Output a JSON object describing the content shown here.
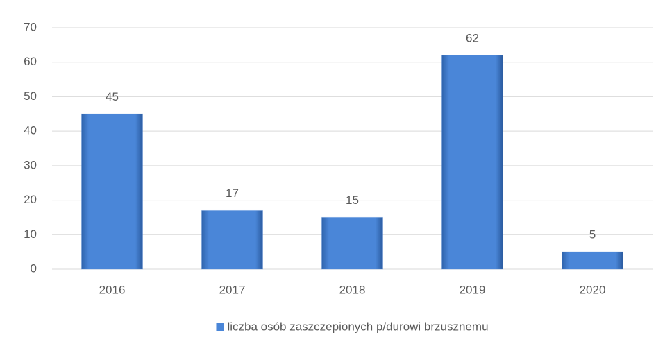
{
  "chart_data": {
    "type": "bar",
    "categories": [
      "2016",
      "2017",
      "2018",
      "2019",
      "2020"
    ],
    "series": [
      {
        "name": "liczba osób zaszczepionych p/durowi brzusznemu",
        "color": "#4a86d8",
        "values": [
          45,
          17,
          15,
          62,
          5
        ]
      }
    ],
    "ylim": [
      0,
      70
    ],
    "yticks": [
      0,
      10,
      20,
      30,
      40,
      50,
      60,
      70
    ],
    "grid": true,
    "legend": "bottom",
    "data_labels": true
  }
}
